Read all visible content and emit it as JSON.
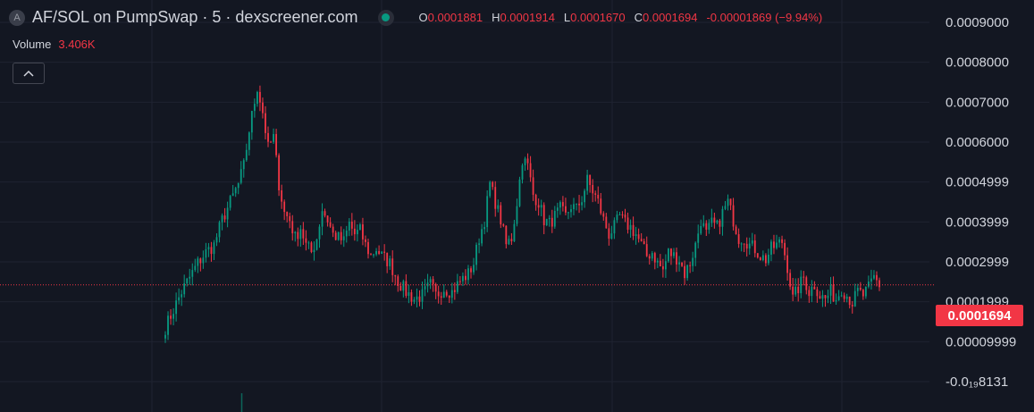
{
  "header": {
    "symbol_icon": "A",
    "title": "AF/SOL on PumpSwap · 5 · dexscreener.com",
    "ohlc": {
      "o_label": "O",
      "o_value": "0.0001881",
      "h_label": "H",
      "h_value": "0.0001914",
      "l_label": "L",
      "l_value": "0.0001670",
      "c_label": "C",
      "c_value": "0.0001694",
      "change": "-0.00001869 (−9.94%)"
    }
  },
  "volume": {
    "label": "Volume",
    "value": "3.406K"
  },
  "colors": {
    "up": "#089981",
    "down": "#f23645",
    "background": "#131722",
    "grid": "#1f2331",
    "text": "#d1d4dc"
  },
  "icons": {
    "status": "live-dot-icon",
    "collapse": "chevron-up-icon"
  },
  "chart_data": {
    "type": "candlestick",
    "y_ticks": [
      "0.0009000",
      "0.0008000",
      "0.0007000",
      "0.0006000",
      "0.0004999",
      "0.0003999",
      "0.0002999",
      "0.0001999",
      "0.00009999",
      "-0.0₁₉8131"
    ],
    "ylim": [
      -0.0001,
      0.0009
    ],
    "last_price": 0.0001694,
    "last_price_label": "0.0001694",
    "grid": true,
    "anchors": [
      [
        0,
        5e-05
      ],
      [
        3,
        0.0001
      ],
      [
        6,
        0.00015
      ],
      [
        9,
        0.00019
      ],
      [
        12,
        0.00023
      ],
      [
        15,
        0.00026
      ],
      [
        18,
        0.00028
      ],
      [
        21,
        0.00035
      ],
      [
        24,
        0.0004
      ],
      [
        27,
        0.00045
      ],
      [
        29,
        0.0005
      ],
      [
        31,
        0.0006
      ],
      [
        34,
        0.00072
      ],
      [
        36,
        0.00065
      ],
      [
        38,
        0.00055
      ],
      [
        40,
        0.00058
      ],
      [
        42,
        0.00045
      ],
      [
        44,
        0.00037
      ],
      [
        46,
        0.00035
      ],
      [
        48,
        0.0003
      ],
      [
        50,
        0.00033
      ],
      [
        52,
        0.00028
      ],
      [
        54,
        0.00026
      ],
      [
        56,
        0.0003
      ],
      [
        58,
        0.00038
      ],
      [
        60,
        0.00035
      ],
      [
        62,
        0.00031
      ],
      [
        64,
        0.0003
      ],
      [
        66,
        0.00029
      ],
      [
        68,
        0.00034
      ],
      [
        70,
        0.00031
      ],
      [
        72,
        0.00032
      ],
      [
        74,
        0.00028
      ],
      [
        76,
        0.00025
      ],
      [
        78,
        0.00027
      ],
      [
        80,
        0.00025
      ],
      [
        83,
        0.00023
      ],
      [
        86,
        0.00018
      ],
      [
        89,
        0.00015
      ],
      [
        92,
        0.00013
      ],
      [
        95,
        0.00014
      ],
      [
        98,
        0.00017
      ],
      [
        100,
        0.00014
      ],
      [
        103,
        0.00016
      ],
      [
        106,
        0.00015
      ],
      [
        109,
        0.00018
      ],
      [
        112,
        0.0002
      ],
      [
        114,
        0.00023
      ],
      [
        116,
        0.0003
      ],
      [
        118,
        0.00035
      ],
      [
        120,
        0.00045
      ],
      [
        122,
        0.0004
      ],
      [
        124,
        0.00035
      ],
      [
        126,
        0.00028
      ],
      [
        128,
        0.0003
      ],
      [
        130,
        0.0004
      ],
      [
        132,
        0.00052
      ],
      [
        134,
        0.0005
      ],
      [
        136,
        0.00042
      ],
      [
        138,
        0.0004
      ],
      [
        140,
        0.00035
      ],
      [
        142,
        0.00034
      ],
      [
        144,
        0.00036
      ],
      [
        146,
        0.00038
      ],
      [
        148,
        0.00036
      ],
      [
        150,
        0.00039
      ],
      [
        152,
        0.00038
      ],
      [
        154,
        0.00041
      ],
      [
        156,
        0.00046
      ],
      [
        158,
        0.00043
      ],
      [
        160,
        0.0004
      ],
      [
        162,
        0.00035
      ],
      [
        164,
        0.00031
      ],
      [
        166,
        0.00033
      ],
      [
        168,
        0.00036
      ],
      [
        170,
        0.00034
      ],
      [
        172,
        0.00033
      ],
      [
        174,
        0.00031
      ],
      [
        176,
        0.00028
      ],
      [
        178,
        0.00025
      ],
      [
        180,
        0.00026
      ],
      [
        182,
        0.00023
      ],
      [
        184,
        0.00021
      ],
      [
        186,
        0.00026
      ],
      [
        188,
        0.00025
      ],
      [
        190,
        0.00024
      ],
      [
        192,
        0.0002
      ],
      [
        194,
        0.00023
      ],
      [
        196,
        0.00028
      ],
      [
        198,
        0.00035
      ],
      [
        200,
        0.00031
      ],
      [
        202,
        0.00034
      ],
      [
        204,
        0.00033
      ],
      [
        206,
        0.00037
      ],
      [
        208,
        0.0004
      ],
      [
        210,
        0.00035
      ],
      [
        212,
        0.0003
      ],
      [
        214,
        0.0003
      ],
      [
        216,
        0.00028
      ],
      [
        218,
        0.00027
      ],
      [
        220,
        0.00025
      ],
      [
        222,
        0.00024
      ],
      [
        224,
        0.00027
      ],
      [
        226,
        0.00028
      ],
      [
        228,
        0.00029
      ],
      [
        230,
        0.00022
      ],
      [
        232,
        0.00013
      ],
      [
        234,
        0.00016
      ],
      [
        236,
        0.00019
      ],
      [
        238,
        0.00015
      ],
      [
        240,
        0.00017
      ],
      [
        242,
        0.00014
      ],
      [
        244,
        0.00013
      ],
      [
        246,
        0.00015
      ],
      [
        248,
        0.00013
      ],
      [
        250,
        0.00016
      ],
      [
        252,
        0.00014
      ],
      [
        254,
        0.00012
      ],
      [
        256,
        0.00015
      ],
      [
        258,
        0.00014
      ],
      [
        260,
        0.00016
      ],
      [
        262,
        0.00019
      ],
      [
        264,
        0.000169
      ]
    ]
  }
}
